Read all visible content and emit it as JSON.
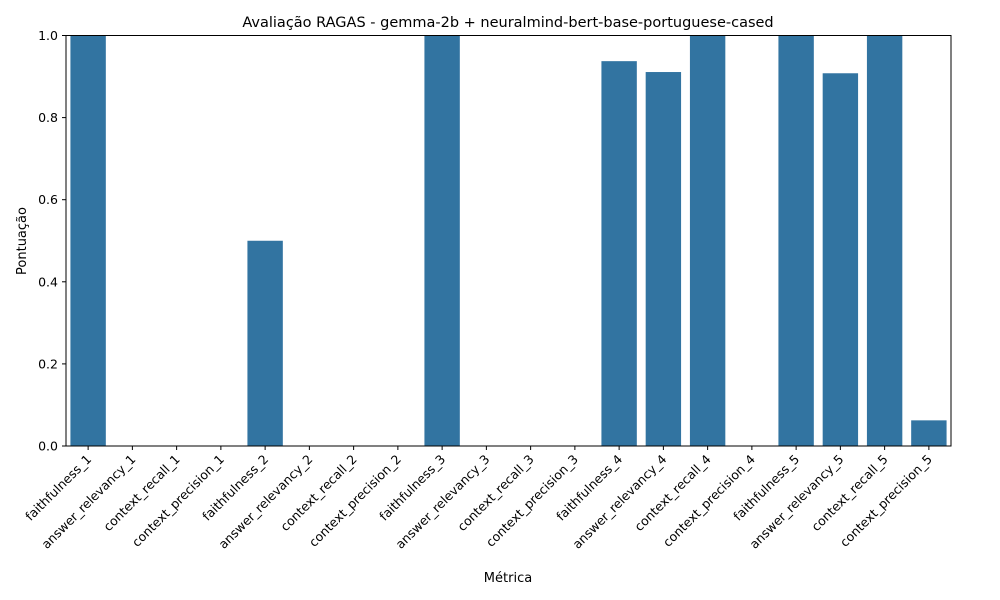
{
  "chart_data": {
    "type": "bar",
    "title": "Avaliação RAGAS - gemma-2b + neuralmind-bert-base-portuguese-cased",
    "xlabel": "Métrica",
    "ylabel": "Pontuação",
    "ylim": [
      0,
      1.0
    ],
    "yticks": [
      "0.0",
      "0.2",
      "0.4",
      "0.6",
      "0.8",
      "1.0"
    ],
    "grid": false,
    "bar_color": "#3274a1",
    "categories": [
      "faithfulness_1",
      "answer_relevancy_1",
      "context_recall_1",
      "context_precision_1",
      "faithfulness_2",
      "answer_relevancy_2",
      "context_recall_2",
      "context_precision_2",
      "faithfulness_3",
      "answer_relevancy_3",
      "context_recall_3",
      "context_precision_3",
      "faithfulness_4",
      "answer_relevancy_4",
      "context_recall_4",
      "context_precision_4",
      "faithfulness_5",
      "answer_relevancy_5",
      "context_recall_5",
      "context_precision_5"
    ],
    "values": [
      1.0,
      0.0,
      0.0,
      0.0,
      0.5,
      0.0,
      0.0,
      0.0,
      1.0,
      0.0,
      0.0,
      0.0,
      0.9375,
      0.911,
      1.0,
      0.0,
      1.0,
      0.908,
      1.0,
      0.0625
    ]
  }
}
